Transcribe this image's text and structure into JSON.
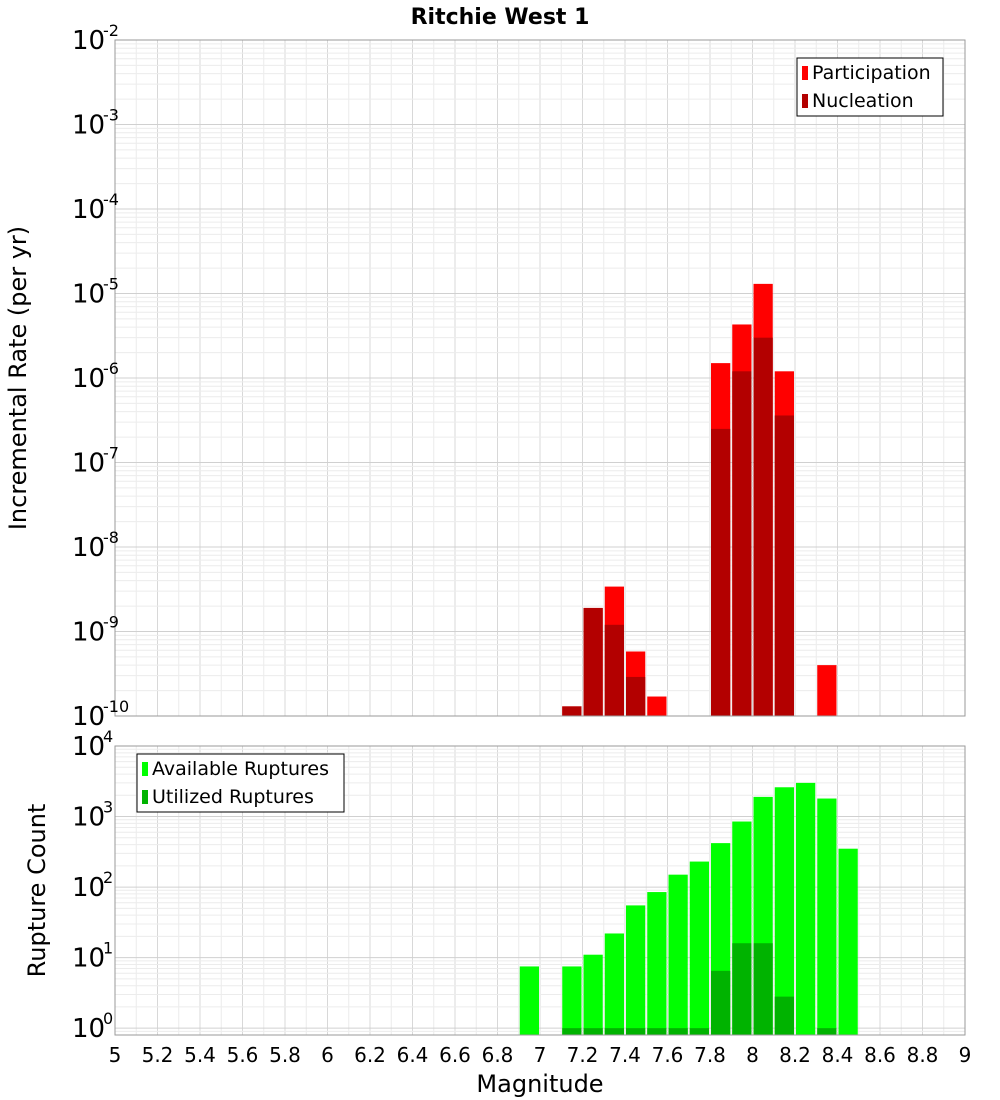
{
  "chart_data": [
    {
      "type": "bar",
      "title": "Ritchie West 1",
      "xlabel": "",
      "ylabel": "Incremental Rate (per yr)",
      "yscale": "log",
      "ylim": [
        1e-10,
        0.01
      ],
      "xlim": [
        5,
        9
      ],
      "grid": true,
      "legend_position": "top-right",
      "y_ticks": [
        {
          "base": "10",
          "exp": "-2",
          "value": 0.01
        },
        {
          "base": "10",
          "exp": "-3",
          "value": 0.001
        },
        {
          "base": "10",
          "exp": "-4",
          "value": 0.0001
        },
        {
          "base": "10",
          "exp": "-5",
          "value": 1e-05
        },
        {
          "base": "10",
          "exp": "-6",
          "value": 1e-06
        },
        {
          "base": "10",
          "exp": "-7",
          "value": 1e-07
        },
        {
          "base": "10",
          "exp": "-8",
          "value": 1e-08
        },
        {
          "base": "10",
          "exp": "-9",
          "value": 1e-09
        },
        {
          "base": "10",
          "exp": "-10",
          "value": 1e-10
        }
      ],
      "series": [
        {
          "name": "Participation",
          "color": "#ff0000",
          "x": [
            7.15,
            7.25,
            7.35,
            7.45,
            7.55,
            7.85,
            7.95,
            8.05,
            8.15,
            8.35
          ],
          "values": [
            1.3e-10,
            1.9e-09,
            3.4e-09,
            5.8e-10,
            1.7e-10,
            1.5e-06,
            4.3e-06,
            1.3e-05,
            1.2e-06,
            4e-10
          ]
        },
        {
          "name": "Nucleation",
          "color": "#b30000",
          "x": [
            7.15,
            7.25,
            7.35,
            7.45,
            7.85,
            7.95,
            8.05,
            8.15
          ],
          "values": [
            1.3e-10,
            1.9e-09,
            1.2e-09,
            2.9e-10,
            2.5e-07,
            1.2e-06,
            3e-06,
            3.6e-07
          ]
        }
      ]
    },
    {
      "type": "bar",
      "xlabel": "Magnitude",
      "ylabel": "Rupture Count",
      "yscale": "log",
      "ylim": [
        0.8,
        10000.0
      ],
      "xlim": [
        5,
        9
      ],
      "grid": true,
      "legend_position": "top-left",
      "x_ticks": [
        "5",
        "5.2",
        "5.4",
        "5.6",
        "5.8",
        "6",
        "6.2",
        "6.4",
        "6.6",
        "6.8",
        "7",
        "7.2",
        "7.4",
        "7.6",
        "7.8",
        "8",
        "8.2",
        "8.4",
        "8.6",
        "8.8",
        "9"
      ],
      "y_ticks": [
        {
          "base": "10",
          "exp": "4",
          "value": 10000
        },
        {
          "base": "10",
          "exp": "3",
          "value": 1000
        },
        {
          "base": "10",
          "exp": "2",
          "value": 100
        },
        {
          "base": "10",
          "exp": "1",
          "value": 10
        },
        {
          "base": "10",
          "exp": "0",
          "value": 1
        }
      ],
      "series": [
        {
          "name": "Available Ruptures",
          "color": "#00ff00",
          "x": [
            6.95,
            7.15,
            7.25,
            7.35,
            7.45,
            7.55,
            7.65,
            7.75,
            7.85,
            7.95,
            8.05,
            8.15,
            8.25,
            8.35,
            8.45
          ],
          "values": [
            7.5,
            7.5,
            11,
            22,
            55,
            85,
            150,
            230,
            420,
            850,
            1900,
            2600,
            3000,
            1800,
            350
          ]
        },
        {
          "name": "Utilized Ruptures",
          "color": "#00b300",
          "x": [
            7.15,
            7.25,
            7.35,
            7.45,
            7.55,
            7.65,
            7.75,
            7.85,
            7.95,
            8.05,
            8.15,
            8.35
          ],
          "values": [
            1,
            1,
            1,
            1,
            1,
            1,
            1,
            6.5,
            16,
            16,
            2.8,
            1
          ]
        }
      ]
    }
  ]
}
